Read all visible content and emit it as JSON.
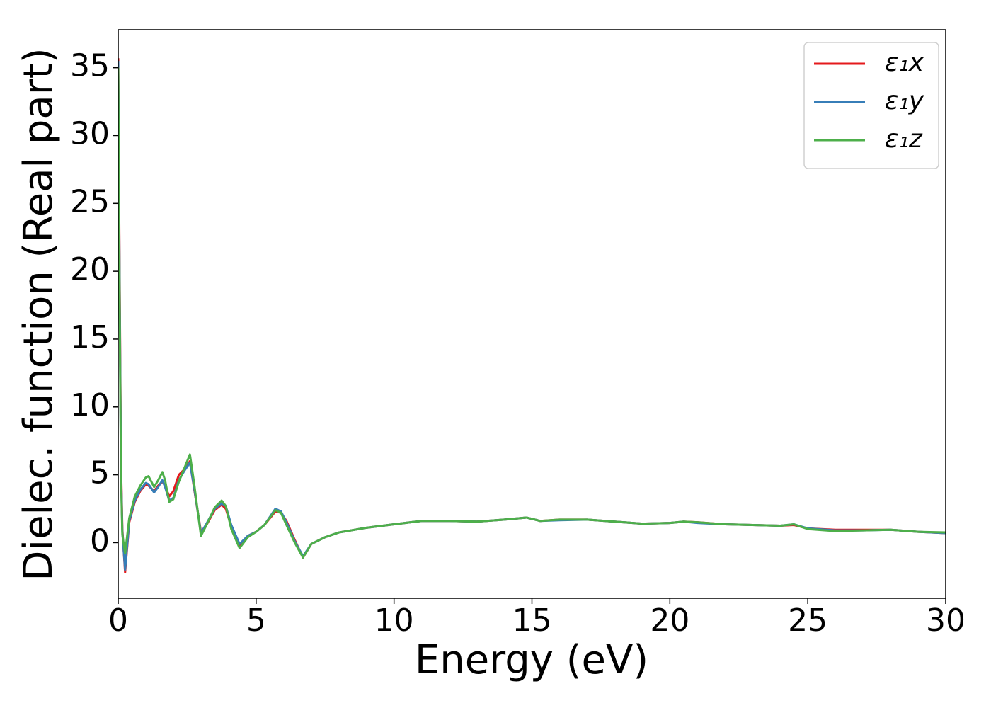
{
  "chart_data": {
    "type": "line",
    "xlabel": "Energy (eV)",
    "ylabel": "Dielec. function (Real part)",
    "x": [
      0,
      0.05,
      0.1,
      0.15,
      0.25,
      0.4,
      0.6,
      0.8,
      1,
      1.1,
      1.3,
      1.45,
      1.6,
      1.7,
      1.85,
      2,
      2.2,
      2.4,
      2.6,
      2.75,
      3,
      3.2,
      3.5,
      3.75,
      3.9,
      4.1,
      4.4,
      4.7,
      5,
      5.3,
      5.7,
      5.9,
      6.1,
      6.4,
      6.7,
      7,
      7.5,
      8,
      9,
      10,
      11,
      12,
      13,
      14,
      14.8,
      15.3,
      16,
      17,
      18,
      19,
      20,
      20.5,
      21,
      22,
      23,
      24,
      24.5,
      25,
      26,
      27,
      28,
      29,
      30
    ],
    "series": [
      {
        "name": "ε₁x",
        "color": "#e41a1c",
        "values": [
          35.7,
          20,
          6,
          1,
          -2.2,
          1.5,
          3.0,
          3.8,
          4.3,
          4.2,
          3.8,
          4.2,
          4.5,
          4.2,
          3.4,
          3.8,
          5.0,
          5.4,
          6.0,
          4.0,
          0.8,
          1.3,
          2.4,
          2.8,
          2.5,
          1.2,
          -0.2,
          0.5,
          0.8,
          1.3,
          2.3,
          2.2,
          1.6,
          0.2,
          -1.1,
          -0.1,
          0.4,
          0.75,
          1.1,
          1.35,
          1.6,
          1.6,
          1.55,
          1.7,
          1.85,
          1.6,
          1.7,
          1.7,
          1.55,
          1.4,
          1.45,
          1.55,
          1.5,
          1.35,
          1.3,
          1.25,
          1.3,
          1.05,
          0.95,
          0.95,
          0.95,
          0.8,
          0.7
        ]
      },
      {
        "name": "ε₁y",
        "color": "#377eb8",
        "values": [
          35.5,
          19,
          5.5,
          0.8,
          -2.0,
          1.6,
          3.1,
          3.9,
          4.4,
          4.3,
          3.7,
          4.1,
          4.6,
          4.1,
          3.1,
          3.3,
          4.6,
          5.3,
          5.9,
          4.1,
          0.7,
          1.4,
          2.5,
          2.9,
          2.7,
          1.3,
          -0.1,
          0.5,
          0.8,
          1.3,
          2.5,
          2.3,
          1.5,
          0.1,
          -1.0,
          -0.1,
          0.4,
          0.75,
          1.1,
          1.35,
          1.6,
          1.6,
          1.55,
          1.7,
          1.85,
          1.6,
          1.65,
          1.7,
          1.55,
          1.4,
          1.45,
          1.55,
          1.45,
          1.35,
          1.3,
          1.25,
          1.35,
          1.05,
          0.9,
          0.9,
          0.95,
          0.8,
          0.7
        ]
      },
      {
        "name": "ε₁z",
        "color": "#4daf4a",
        "values": [
          35,
          18,
          5,
          0.6,
          -0.8,
          1.8,
          3.4,
          4.2,
          4.8,
          4.9,
          4.1,
          4.6,
          5.2,
          4.6,
          3.0,
          3.2,
          4.5,
          5.5,
          6.5,
          4.4,
          0.5,
          1.3,
          2.6,
          3.1,
          2.7,
          1.0,
          -0.4,
          0.4,
          0.8,
          1.3,
          2.4,
          2.2,
          1.3,
          0,
          -1.1,
          -0.1,
          0.4,
          0.75,
          1.1,
          1.35,
          1.6,
          1.6,
          1.55,
          1.7,
          1.85,
          1.6,
          1.7,
          1.7,
          1.55,
          1.4,
          1.45,
          1.55,
          1.5,
          1.35,
          1.3,
          1.25,
          1.35,
          1.0,
          0.85,
          0.9,
          0.95,
          0.8,
          0.75
        ]
      }
    ],
    "xlim": [
      0,
      30
    ],
    "xticks": [
      0,
      5,
      10,
      15,
      20,
      25,
      30
    ],
    "ylim": [
      -4.1,
      37.8
    ],
    "yticks": [
      0,
      5,
      10,
      15,
      20,
      25,
      30,
      35
    ],
    "grid": false,
    "legend": "upper right"
  }
}
